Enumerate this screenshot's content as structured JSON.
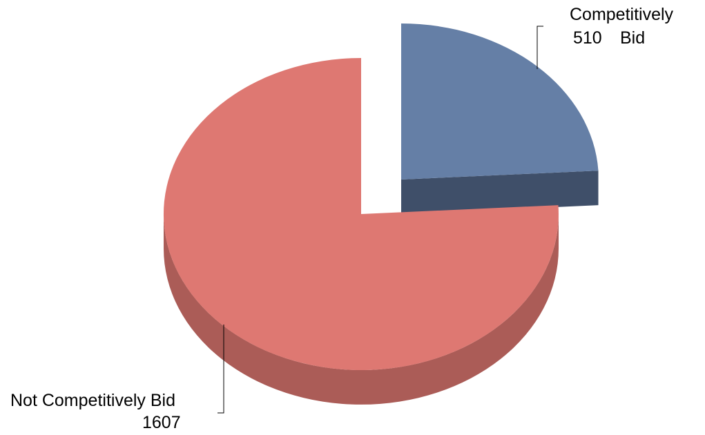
{
  "chart_data": {
    "type": "pie",
    "style": "3d-exploded",
    "title": "",
    "slices": [
      {
        "label_lines": [
          "Not Competitively Bid"
        ],
        "value": 1607,
        "value_text": "1607",
        "color": "#DE7872",
        "side_color": "#AB5C57"
      },
      {
        "label_lines": [
          "Competitively",
          "Bid"
        ],
        "value": 510,
        "value_text": "510",
        "color": "#657FA6",
        "side_color": "#3F4F69",
        "exploded": true
      }
    ],
    "legend": "none"
  }
}
